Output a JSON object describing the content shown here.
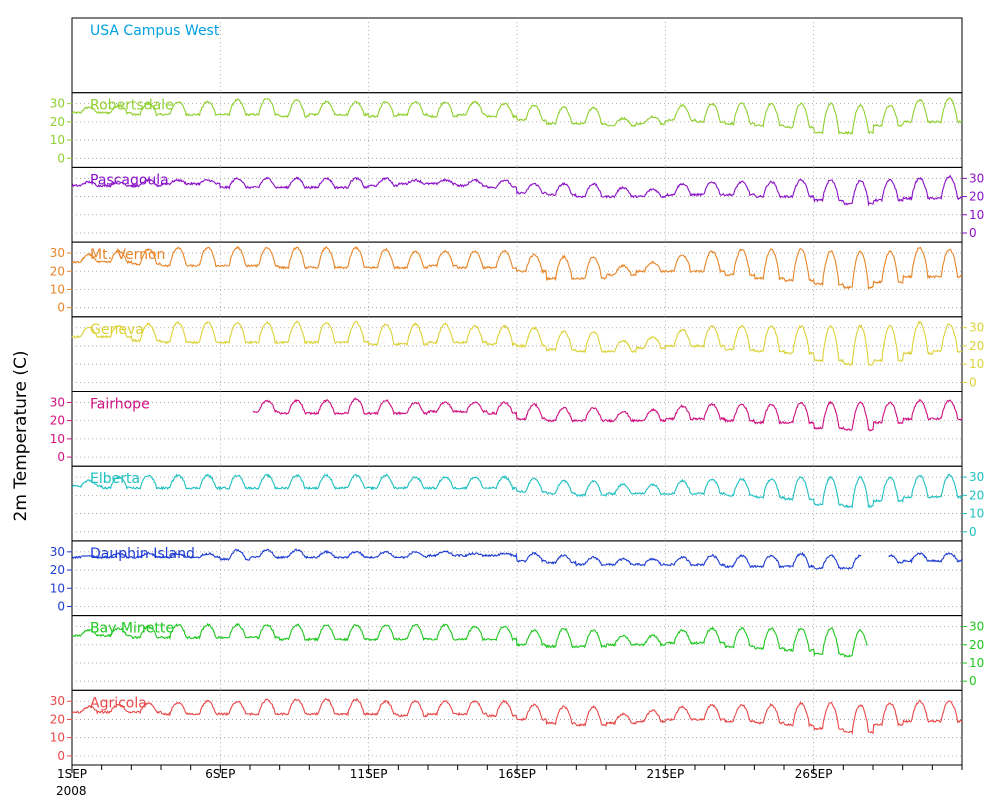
{
  "chart_data": {
    "type": "line",
    "ylabel": "2m Temperature (C)",
    "x_ticks": [
      {
        "day": 1,
        "label": "1SEP"
      },
      {
        "day": 6,
        "label": "6SEP"
      },
      {
        "day": 11,
        "label": "11SEP"
      },
      {
        "day": 16,
        "label": "16SEP"
      },
      {
        "day": 21,
        "label": "21SEP"
      },
      {
        "day": 26,
        "label": "26SEP"
      }
    ],
    "x_year_label": "2008",
    "xlim_days": [
      1,
      31
    ],
    "y_ticks": [
      0,
      10,
      20,
      30
    ],
    "ylim": [
      -5,
      36
    ],
    "grid": true,
    "panels": [
      {
        "name": "USA Campus West",
        "color": "#00a0e0",
        "axis_side": "none",
        "series": []
      },
      {
        "name": "Robertsdale",
        "color": "#90d030",
        "axis_side": "left",
        "daily_min": [
          25,
          25,
          24,
          24,
          24,
          24,
          24,
          23,
          24,
          24,
          23,
          24,
          23,
          24,
          23,
          21,
          19,
          19,
          18,
          19,
          21,
          20,
          19,
          18,
          17,
          14,
          14,
          18,
          20,
          20
        ],
        "daily_max": [
          28,
          29,
          30,
          31,
          31,
          32,
          33,
          32,
          31,
          31,
          31,
          31,
          31,
          31,
          30,
          29,
          28,
          28,
          22,
          23,
          29,
          30,
          30,
          30,
          30,
          30,
          29,
          29,
          32,
          33
        ],
        "gaps": []
      },
      {
        "name": "Pascagoula",
        "color": "#8a10c8",
        "axis_side": "right",
        "daily_min": [
          26,
          26,
          26,
          27,
          27,
          25,
          25,
          25,
          25,
          25,
          26,
          27,
          27,
          26,
          25,
          22,
          21,
          20,
          20,
          20,
          21,
          21,
          21,
          20,
          20,
          18,
          16,
          18,
          19,
          19
        ],
        "daily_max": [
          28,
          28,
          29,
          29,
          29,
          30,
          30,
          30,
          30,
          30,
          30,
          29,
          29,
          29,
          29,
          27,
          27,
          27,
          25,
          24,
          27,
          28,
          28,
          28,
          29,
          29,
          29,
          29,
          30,
          31
        ],
        "gaps": []
      },
      {
        "name": "Mt. Vernon",
        "color": "#e8862a",
        "axis_side": "left",
        "daily_min": [
          25,
          25,
          24,
          23,
          23,
          23,
          23,
          22,
          22,
          22,
          22,
          22,
          23,
          22,
          22,
          20,
          16,
          16,
          18,
          20,
          20,
          20,
          18,
          16,
          15,
          13,
          11,
          14,
          17,
          17
        ],
        "daily_max": [
          29,
          31,
          32,
          33,
          33,
          33,
          33,
          33,
          33,
          33,
          32,
          31,
          31,
          31,
          31,
          29,
          28,
          28,
          23,
          25,
          29,
          31,
          32,
          32,
          32,
          31,
          31,
          31,
          33,
          32
        ],
        "gaps": []
      },
      {
        "name": "Geneva",
        "color": "#dcd23a",
        "axis_side": "right",
        "daily_min": [
          25,
          25,
          23,
          22,
          22,
          22,
          22,
          22,
          22,
          22,
          21,
          21,
          22,
          22,
          21,
          20,
          18,
          17,
          17,
          19,
          20,
          20,
          18,
          17,
          16,
          12,
          10,
          12,
          16,
          17
        ],
        "daily_max": [
          30,
          31,
          32,
          33,
          33,
          33,
          33,
          33,
          33,
          33,
          32,
          32,
          32,
          31,
          31,
          30,
          28,
          28,
          23,
          25,
          29,
          31,
          31,
          31,
          31,
          31,
          31,
          31,
          33,
          32
        ],
        "gaps": []
      },
      {
        "name": "Fairhope",
        "color": "#d01080",
        "axis_side": "left",
        "daily_min": [
          null,
          null,
          null,
          null,
          null,
          null,
          25,
          24,
          24,
          24,
          24,
          24,
          25,
          25,
          24,
          21,
          20,
          20,
          20,
          20,
          21,
          21,
          20,
          19,
          19,
          16,
          15,
          19,
          21,
          21
        ],
        "daily_max": [
          null,
          null,
          null,
          null,
          null,
          null,
          31,
          31,
          31,
          32,
          31,
          30,
          30,
          30,
          30,
          29,
          27,
          27,
          25,
          26,
          28,
          29,
          29,
          29,
          30,
          30,
          30,
          30,
          31,
          31
        ],
        "gaps": [
          [
            1,
            7.1
          ]
        ]
      },
      {
        "name": "Elberta",
        "color": "#20c0c0",
        "axis_side": "right",
        "daily_min": [
          25,
          24,
          24,
          24,
          24,
          24,
          24,
          24,
          24,
          24,
          24,
          24,
          24,
          24,
          24,
          22,
          21,
          20,
          21,
          21,
          21,
          21,
          20,
          19,
          18,
          15,
          14,
          17,
          19,
          19
        ],
        "daily_max": [
          28,
          30,
          31,
          31,
          31,
          31,
          31,
          31,
          31,
          31,
          31,
          30,
          30,
          30,
          30,
          29,
          28,
          28,
          26,
          26,
          28,
          29,
          29,
          29,
          30,
          30,
          30,
          30,
          31,
          31
        ],
        "gaps": []
      },
      {
        "name": "Dauphin Island",
        "color": "#1e3cd2",
        "axis_side": "left",
        "daily_min": [
          27,
          27,
          27,
          27,
          27,
          26,
          27,
          27,
          27,
          27,
          27,
          27,
          28,
          28,
          28,
          25,
          24,
          23,
          23,
          23,
          23,
          23,
          22,
          22,
          22,
          21,
          21,
          24,
          25,
          25
        ],
        "daily_max": [
          28,
          29,
          29,
          29,
          29,
          31,
          31,
          31,
          30,
          30,
          30,
          30,
          30,
          29,
          29,
          29,
          28,
          27,
          26,
          26,
          27,
          28,
          28,
          28,
          29,
          28,
          28,
          28,
          29,
          29
        ],
        "gaps": [
          [
            27.6,
            28.5
          ]
        ]
      },
      {
        "name": "Bay Minette",
        "color": "#20c820",
        "axis_side": "right",
        "daily_min": [
          25,
          25,
          24,
          24,
          24,
          24,
          24,
          23,
          23,
          23,
          23,
          23,
          23,
          23,
          23,
          20,
          19,
          19,
          20,
          20,
          21,
          21,
          19,
          18,
          17,
          15,
          14,
          null,
          null,
          null
        ],
        "daily_max": [
          28,
          29,
          30,
          31,
          31,
          31,
          31,
          31,
          31,
          31,
          31,
          31,
          31,
          30,
          30,
          28,
          29,
          28,
          25,
          25,
          28,
          29,
          29,
          29,
          29,
          29,
          28,
          null,
          null,
          null
        ],
        "gaps": [
          [
            27.8,
            31
          ]
        ]
      },
      {
        "name": "Agricola",
        "color": "#e84848",
        "axis_side": "left",
        "daily_min": [
          24,
          24,
          24,
          23,
          23,
          23,
          23,
          23,
          23,
          23,
          23,
          22,
          23,
          23,
          22,
          20,
          18,
          17,
          18,
          19,
          20,
          20,
          19,
          18,
          17,
          15,
          13,
          17,
          19,
          19
        ],
        "daily_max": [
          27,
          28,
          29,
          29,
          30,
          30,
          31,
          31,
          31,
          31,
          30,
          30,
          30,
          30,
          30,
          28,
          27,
          27,
          23,
          25,
          27,
          28,
          28,
          28,
          29,
          29,
          28,
          29,
          30,
          30
        ],
        "gaps": []
      }
    ]
  }
}
